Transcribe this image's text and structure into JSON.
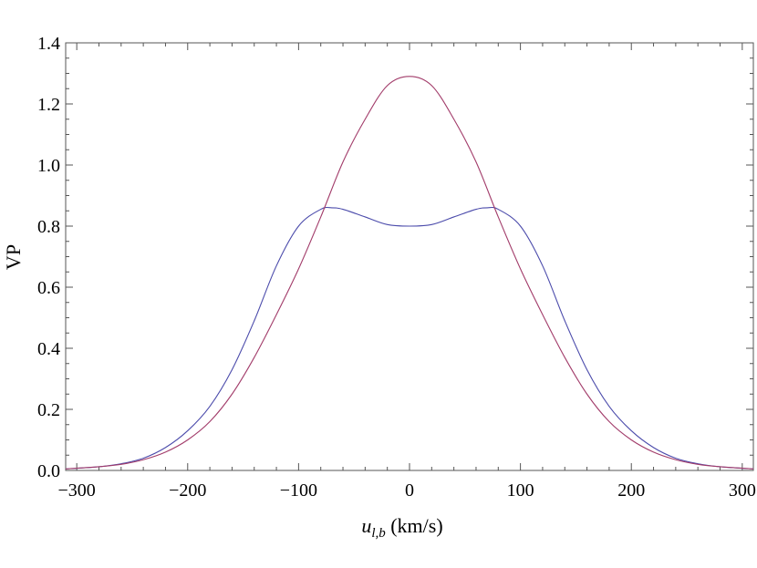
{
  "chart_data": {
    "type": "line",
    "xlabel": "u_{l,b} (km/s)",
    "xlabel_parts": {
      "var": "u",
      "sub": "l,b",
      "unit": " (km/s)"
    },
    "ylabel": "VP",
    "xlim": [
      -310,
      310
    ],
    "ylim": [
      0,
      1.4
    ],
    "x_ticks": [
      -300,
      -200,
      -100,
      0,
      100,
      200,
      300
    ],
    "x_tick_labels": [
      "−300",
      "−200",
      "−100",
      "0",
      "100",
      "200",
      "300"
    ],
    "y_ticks": [
      0,
      0.2,
      0.4,
      0.6,
      0.8,
      1.0,
      1.2,
      1.4
    ],
    "y_tick_labels": [
      "0.0",
      "0.2",
      "0.4",
      "0.6",
      "0.8",
      "1.0",
      "1.2",
      "1.4"
    ],
    "grid": false,
    "series": [
      {
        "color": "#4b4bab",
        "x": [
          -310,
          -280,
          -260,
          -240,
          -220,
          -200,
          -180,
          -160,
          -140,
          -120,
          -100,
          -80,
          -70,
          -60,
          -40,
          -20,
          0,
          20,
          40,
          60,
          70,
          80,
          100,
          120,
          140,
          160,
          180,
          200,
          220,
          240,
          260,
          280,
          310
        ],
        "y": [
          0.005,
          0.012,
          0.022,
          0.04,
          0.075,
          0.13,
          0.21,
          0.33,
          0.49,
          0.67,
          0.8,
          0.855,
          0.86,
          0.855,
          0.83,
          0.805,
          0.8,
          0.805,
          0.83,
          0.855,
          0.86,
          0.855,
          0.8,
          0.67,
          0.49,
          0.33,
          0.21,
          0.13,
          0.075,
          0.04,
          0.022,
          0.012,
          0.005
        ]
      },
      {
        "color": "#a23c6a",
        "x": [
          -310,
          -280,
          -260,
          -240,
          -220,
          -200,
          -180,
          -160,
          -140,
          -120,
          -100,
          -80,
          -60,
          -40,
          -20,
          0,
          20,
          40,
          60,
          80,
          100,
          120,
          140,
          160,
          180,
          200,
          220,
          240,
          260,
          280,
          310
        ],
        "y": [
          0.005,
          0.012,
          0.02,
          0.035,
          0.06,
          0.1,
          0.16,
          0.25,
          0.37,
          0.51,
          0.66,
          0.83,
          1.01,
          1.15,
          1.26,
          1.29,
          1.26,
          1.15,
          1.01,
          0.83,
          0.66,
          0.51,
          0.37,
          0.25,
          0.16,
          0.1,
          0.06,
          0.035,
          0.02,
          0.012,
          0.005
        ]
      }
    ]
  }
}
